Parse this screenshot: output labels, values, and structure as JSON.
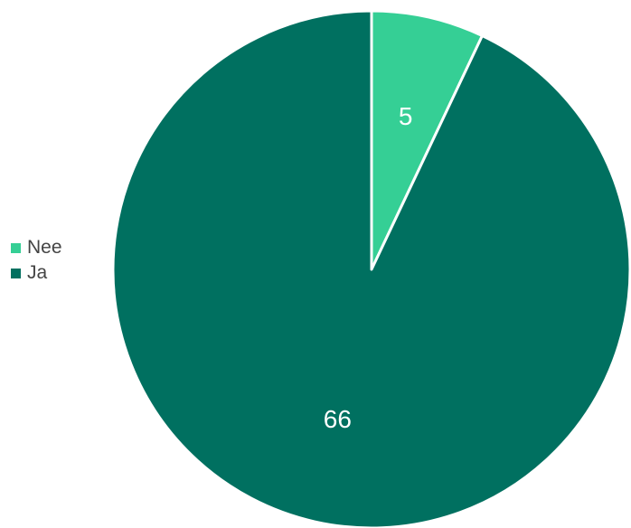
{
  "chart_data": {
    "type": "pie",
    "categories": [
      "Nee",
      "Ja"
    ],
    "values": [
      5,
      66
    ],
    "data_labels": [
      "5",
      "66"
    ],
    "colors": [
      "#35cf95",
      "#007060"
    ],
    "legend_position": "left",
    "title": "",
    "xlabel": "",
    "ylabel": ""
  },
  "legend": {
    "items": [
      {
        "label": "Nee",
        "color": "#35cf95"
      },
      {
        "label": "Ja",
        "color": "#007060"
      }
    ]
  }
}
